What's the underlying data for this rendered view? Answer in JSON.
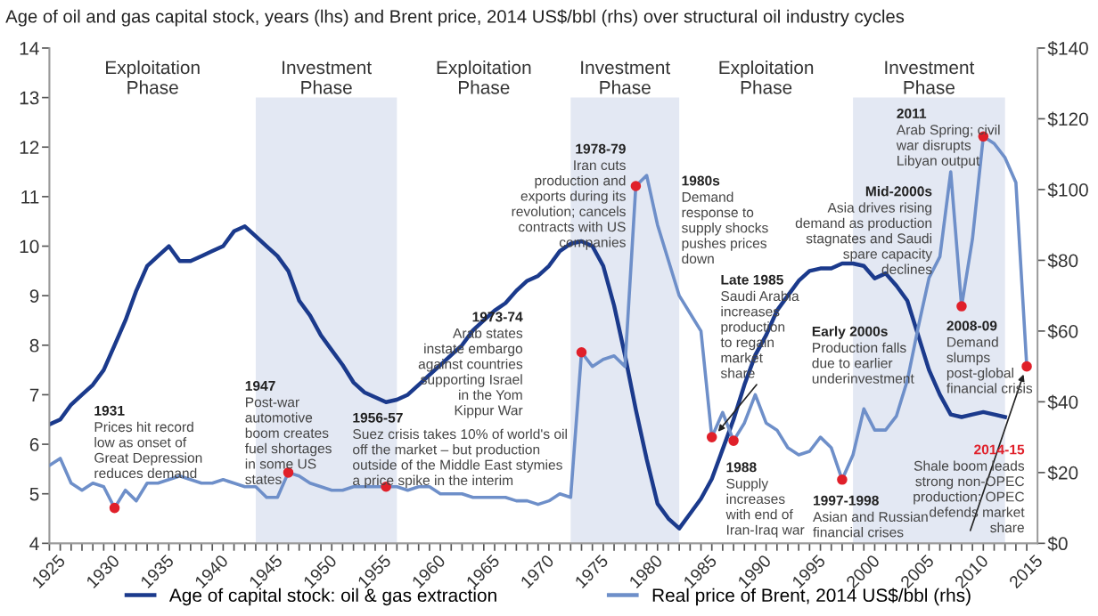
{
  "chart_data": {
    "type": "line",
    "title": "Age of oil and gas capital stock, years (lhs) and Brent price, 2014 US$/bbl (rhs) over structural oil industry cycles",
    "xlim": [
      1925,
      2016
    ],
    "xticks": [
      1925,
      {
        "value": 1926,
        "label": null
      },
      {
        "value": 1927,
        "label": null
      },
      {
        "value": 1928,
        "label": null
      },
      {
        "value": 1929,
        "label": null
      },
      1930,
      {
        "value": 1931,
        "label": null
      },
      {
        "value": 1932,
        "label": null
      },
      {
        "value": 1933,
        "label": null
      },
      {
        "value": 1934,
        "label": null
      },
      1935,
      {
        "value": 1936,
        "label": null
      },
      {
        "value": 1937,
        "label": null
      },
      {
        "value": 1938,
        "label": null
      },
      {
        "value": 1939,
        "label": null
      },
      1940,
      {
        "value": 1941,
        "label": null
      },
      {
        "value": 1942,
        "label": null
      },
      {
        "value": 1943,
        "label": null
      },
      {
        "value": 1944,
        "label": null
      },
      1945,
      {
        "value": 1946,
        "label": null
      },
      {
        "value": 1947,
        "label": null
      },
      {
        "value": 1948,
        "label": null
      },
      {
        "value": 1949,
        "label": null
      },
      1950,
      {
        "value": 1951,
        "label": null
      },
      {
        "value": 1952,
        "label": null
      },
      {
        "value": 1953,
        "label": null
      },
      {
        "value": 1954,
        "label": null
      },
      1955,
      {
        "value": 1956,
        "label": null
      },
      {
        "value": 1957,
        "label": null
      },
      {
        "value": 1958,
        "label": null
      },
      {
        "value": 1959,
        "label": null
      },
      1960,
      {
        "value": 1961,
        "label": null
      },
      {
        "value": 1962,
        "label": null
      },
      {
        "value": 1963,
        "label": null
      },
      {
        "value": 1964,
        "label": null
      },
      1965,
      {
        "value": 1966,
        "label": null
      },
      {
        "value": 1967,
        "label": null
      },
      {
        "value": 1968,
        "label": null
      },
      {
        "value": 1969,
        "label": null
      },
      1970,
      {
        "value": 1971,
        "label": null
      },
      {
        "value": 1972,
        "label": null
      },
      {
        "value": 1973,
        "label": null
      },
      {
        "value": 1974,
        "label": null
      },
      1975,
      {
        "value": 1976,
        "label": null
      },
      {
        "value": 1977,
        "label": null
      },
      {
        "value": 1978,
        "label": null
      },
      {
        "value": 1979,
        "label": null
      },
      1980,
      {
        "value": 1981,
        "label": null
      },
      {
        "value": 1982,
        "label": null
      },
      {
        "value": 1983,
        "label": null
      },
      {
        "value": 1984,
        "label": null
      },
      1985,
      {
        "value": 1986,
        "label": null
      },
      {
        "value": 1987,
        "label": null
      },
      {
        "value": 1988,
        "label": null
      },
      {
        "value": 1989,
        "label": null
      },
      1990,
      {
        "value": 1991,
        "label": null
      },
      {
        "value": 1992,
        "label": null
      },
      {
        "value": 1993,
        "label": null
      },
      {
        "value": 1994,
        "label": null
      },
      1995,
      {
        "value": 1996,
        "label": null
      },
      {
        "value": 1997,
        "label": null
      },
      {
        "value": 1998,
        "label": null
      },
      {
        "value": 1999,
        "label": null
      },
      2000,
      {
        "value": 2001,
        "label": null
      },
      {
        "value": 2002,
        "label": null
      },
      {
        "value": 2003,
        "label": null
      },
      {
        "value": 2004,
        "label": null
      },
      2005,
      {
        "value": 2006,
        "label": null
      },
      {
        "value": 2007,
        "label": null
      },
      {
        "value": 2008,
        "label": null
      },
      {
        "value": 2009,
        "label": null
      },
      2010,
      {
        "value": 2011,
        "label": null
      },
      {
        "value": 2012,
        "label": null
      },
      {
        "value": 2013,
        "label": null
      },
      {
        "value": 2014,
        "label": null
      },
      2015
    ],
    "ylim": [
      4,
      14
    ],
    "yticks": [
      4,
      5,
      6,
      7,
      8,
      9,
      10,
      11,
      12,
      13,
      14
    ],
    "y2lim": [
      0,
      140
    ],
    "y2ticks": [
      {
        "value": 0,
        "label": "$0"
      },
      {
        "value": 20,
        "label": "$20"
      },
      {
        "value": 40,
        "label": "$40"
      },
      {
        "value": 60,
        "label": "$60"
      },
      {
        "value": 80,
        "label": "$80"
      },
      {
        "value": 100,
        "label": "$100"
      },
      {
        "value": 120,
        "label": "$120"
      },
      {
        "value": 140,
        "label": "$140"
      }
    ],
    "legend": "bottom",
    "grid": false,
    "series": [
      {
        "name": "Age of capital stock: oil & gas extraction",
        "color": "#1b3a8c",
        "x": [
          1925,
          1926,
          1927,
          1928,
          1929,
          1930,
          1931,
          1932,
          1933,
          1934,
          1935,
          1936,
          1937,
          1938,
          1939,
          1940,
          1941,
          1942,
          1943,
          1944,
          1945,
          1946,
          1947,
          1948,
          1949,
          1950,
          1951,
          1952,
          1953,
          1954,
          1955,
          1956,
          1957,
          1958,
          1959,
          1960,
          1961,
          1962,
          1963,
          1964,
          1965,
          1966,
          1967,
          1968,
          1969,
          1970,
          1971,
          1972,
          1973,
          1974,
          1975,
          1976,
          1977,
          1978,
          1979,
          1980,
          1981,
          1982,
          1983,
          1984,
          1985,
          1986,
          1987,
          1988,
          1989,
          1990,
          1991,
          1992,
          1993,
          1994,
          1995,
          1996,
          1997,
          1998,
          1999,
          2000,
          2001,
          2002,
          2003,
          2004,
          2005,
          2006,
          2007,
          2008,
          2009,
          2010,
          2011,
          2012,
          2013
        ],
        "values": [
          6.4,
          6.5,
          6.8,
          7.0,
          7.2,
          7.5,
          8.0,
          8.5,
          9.1,
          9.6,
          9.8,
          10.0,
          9.7,
          9.7,
          9.8,
          9.9,
          10.0,
          10.3,
          10.4,
          10.2,
          10.0,
          9.8,
          9.5,
          8.9,
          8.6,
          8.2,
          7.9,
          7.6,
          7.25,
          7.05,
          6.95,
          6.85,
          6.9,
          7.0,
          7.2,
          7.4,
          7.6,
          7.8,
          8.0,
          8.3,
          8.5,
          8.7,
          8.85,
          9.1,
          9.3,
          9.4,
          9.6,
          9.9,
          10.05,
          10.1,
          10.0,
          9.6,
          8.8,
          7.8,
          6.7,
          5.7,
          4.8,
          4.5,
          4.3,
          4.6,
          4.9,
          5.3,
          5.9,
          6.5,
          7.2,
          7.8,
          8.2,
          8.7,
          9.0,
          9.3,
          9.5,
          9.55,
          9.55,
          9.65,
          9.65,
          9.6,
          9.35,
          9.45,
          9.2,
          8.9,
          8.2,
          7.5,
          7.0,
          6.6,
          6.55,
          6.6,
          6.65,
          6.6,
          6.55
        ]
      },
      {
        "name": "Real price of Brent, 2014 US$/bbl (rhs)",
        "color": "#6e8fc9",
        "axis": "y2",
        "x": [
          1925,
          1926,
          1927,
          1928,
          1929,
          1930,
          1931,
          1932,
          1933,
          1934,
          1935,
          1936,
          1937,
          1938,
          1939,
          1940,
          1941,
          1942,
          1943,
          1944,
          1945,
          1946,
          1947,
          1948,
          1949,
          1950,
          1951,
          1952,
          1953,
          1954,
          1955,
          1956,
          1957,
          1958,
          1959,
          1960,
          1961,
          1962,
          1963,
          1964,
          1965,
          1966,
          1967,
          1968,
          1969,
          1970,
          1971,
          1972,
          1973,
          1974,
          1975,
          1976,
          1977,
          1978,
          1979,
          1980,
          1981,
          1982,
          1983,
          1984,
          1985,
          1986,
          1987,
          1988,
          1989,
          1990,
          1991,
          1992,
          1993,
          1994,
          1995,
          1996,
          1997,
          1998,
          1999,
          2000,
          2001,
          2002,
          2003,
          2004,
          2005,
          2006,
          2007,
          2008,
          2009,
          2010,
          2011,
          2012,
          2013,
          2014,
          2015
        ],
        "values": [
          22,
          24,
          17,
          15,
          17,
          16,
          10,
          15,
          12,
          17,
          17,
          18,
          19,
          18,
          17,
          17,
          18,
          17,
          16,
          16,
          13,
          13,
          20,
          19,
          17,
          16,
          15,
          15,
          16,
          16,
          16,
          16,
          16,
          15,
          16,
          16,
          14,
          14,
          14,
          13,
          13,
          13,
          13,
          12,
          12,
          11,
          12,
          14,
          13,
          54,
          50,
          52,
          53,
          50,
          101,
          104,
          90,
          80,
          70,
          65,
          60,
          30,
          37,
          29,
          34,
          42,
          34,
          32,
          27,
          25,
          26,
          30,
          27,
          18,
          25,
          38,
          32,
          32,
          36,
          46,
          61,
          75,
          81,
          105,
          67,
          86,
          115,
          113,
          109,
          102,
          50
        ]
      },
      {
        "type": "scatter",
        "color": "#e0202a",
        "axis": "y2",
        "marker": "circle",
        "x": [
          1931,
          1947,
          1956,
          1974,
          1979,
          1986,
          1988,
          1998,
          2009,
          2011,
          2015
        ],
        "values": [
          10,
          20,
          16,
          54,
          101,
          30,
          29,
          18,
          67,
          115,
          50
        ]
      }
    ],
    "bands": [
      {
        "axis": "x",
        "from": 1944,
        "to": 1957,
        "label": "Investment\nPhase",
        "color": "#e3e8f3"
      },
      {
        "axis": "x",
        "from": 1973,
        "to": 1983,
        "label": "Investment\nPhase",
        "color": "#e3e8f3"
      },
      {
        "axis": "x",
        "from": 1999,
        "to": 2013,
        "label": "Investment\nPhase",
        "color": "#e3e8f3"
      }
    ],
    "annotations": [
      "1931\nPrices hit record\nlow as onset of\nGreat Depression\nreduces demand",
      "1947\nPost-war\nautomotive\nboom creates\nfuel shortages\nin some US\nstates",
      "1956-57\nSuez crisis takes 10% of world's oil\noff the market – but production\noutside of the Middle East stymies\na price spike in the interim",
      "1973-74\nArab states\ninstate embargo\nagainst countries\nsupporting Israel\nin the Yom\nKippur War",
      "1978-79\nIran cuts\nproduction and\nexports during its\nrevolution; cancels\ncontracts with US\ncompanies",
      "1980s\nDemand\nresponse to\nsupply shocks\npushes prices\ndown",
      {
        "text": "Late 1985\nSaudi Arabia\nincreases\nproduction\nto regain\nmarket\nshare",
        "x": 1986,
        "y": 6.1
      },
      "1988\nSupply\nincreases\nwith end of\nIran-Iraq war",
      "1997-1998\nAsian and Russian\nfinancial crises",
      "Early 2000s\nProduction falls\ndue to earlier\nunderinvestment",
      "Mid-2000s\nAsia drives rising\ndemand as production\nstagnates and Saudi\nspare capacity\ndeclines",
      "2011\nArab Spring; civil\nwar disrupts\nLibyan output",
      "2008-09\nDemand\nslumps\npost-global\nfinancial crisis",
      {
        "text": "2014-15\nShale boom leads\nstrong non-OPEC\nproduction; OPEC\ndefends market\nshare",
        "x": 2015,
        "y": 7.6
      },
      "Exploitation\nPhase",
      "Exploitation\nPhase",
      "Exploitation\nPhase"
    ]
  }
}
